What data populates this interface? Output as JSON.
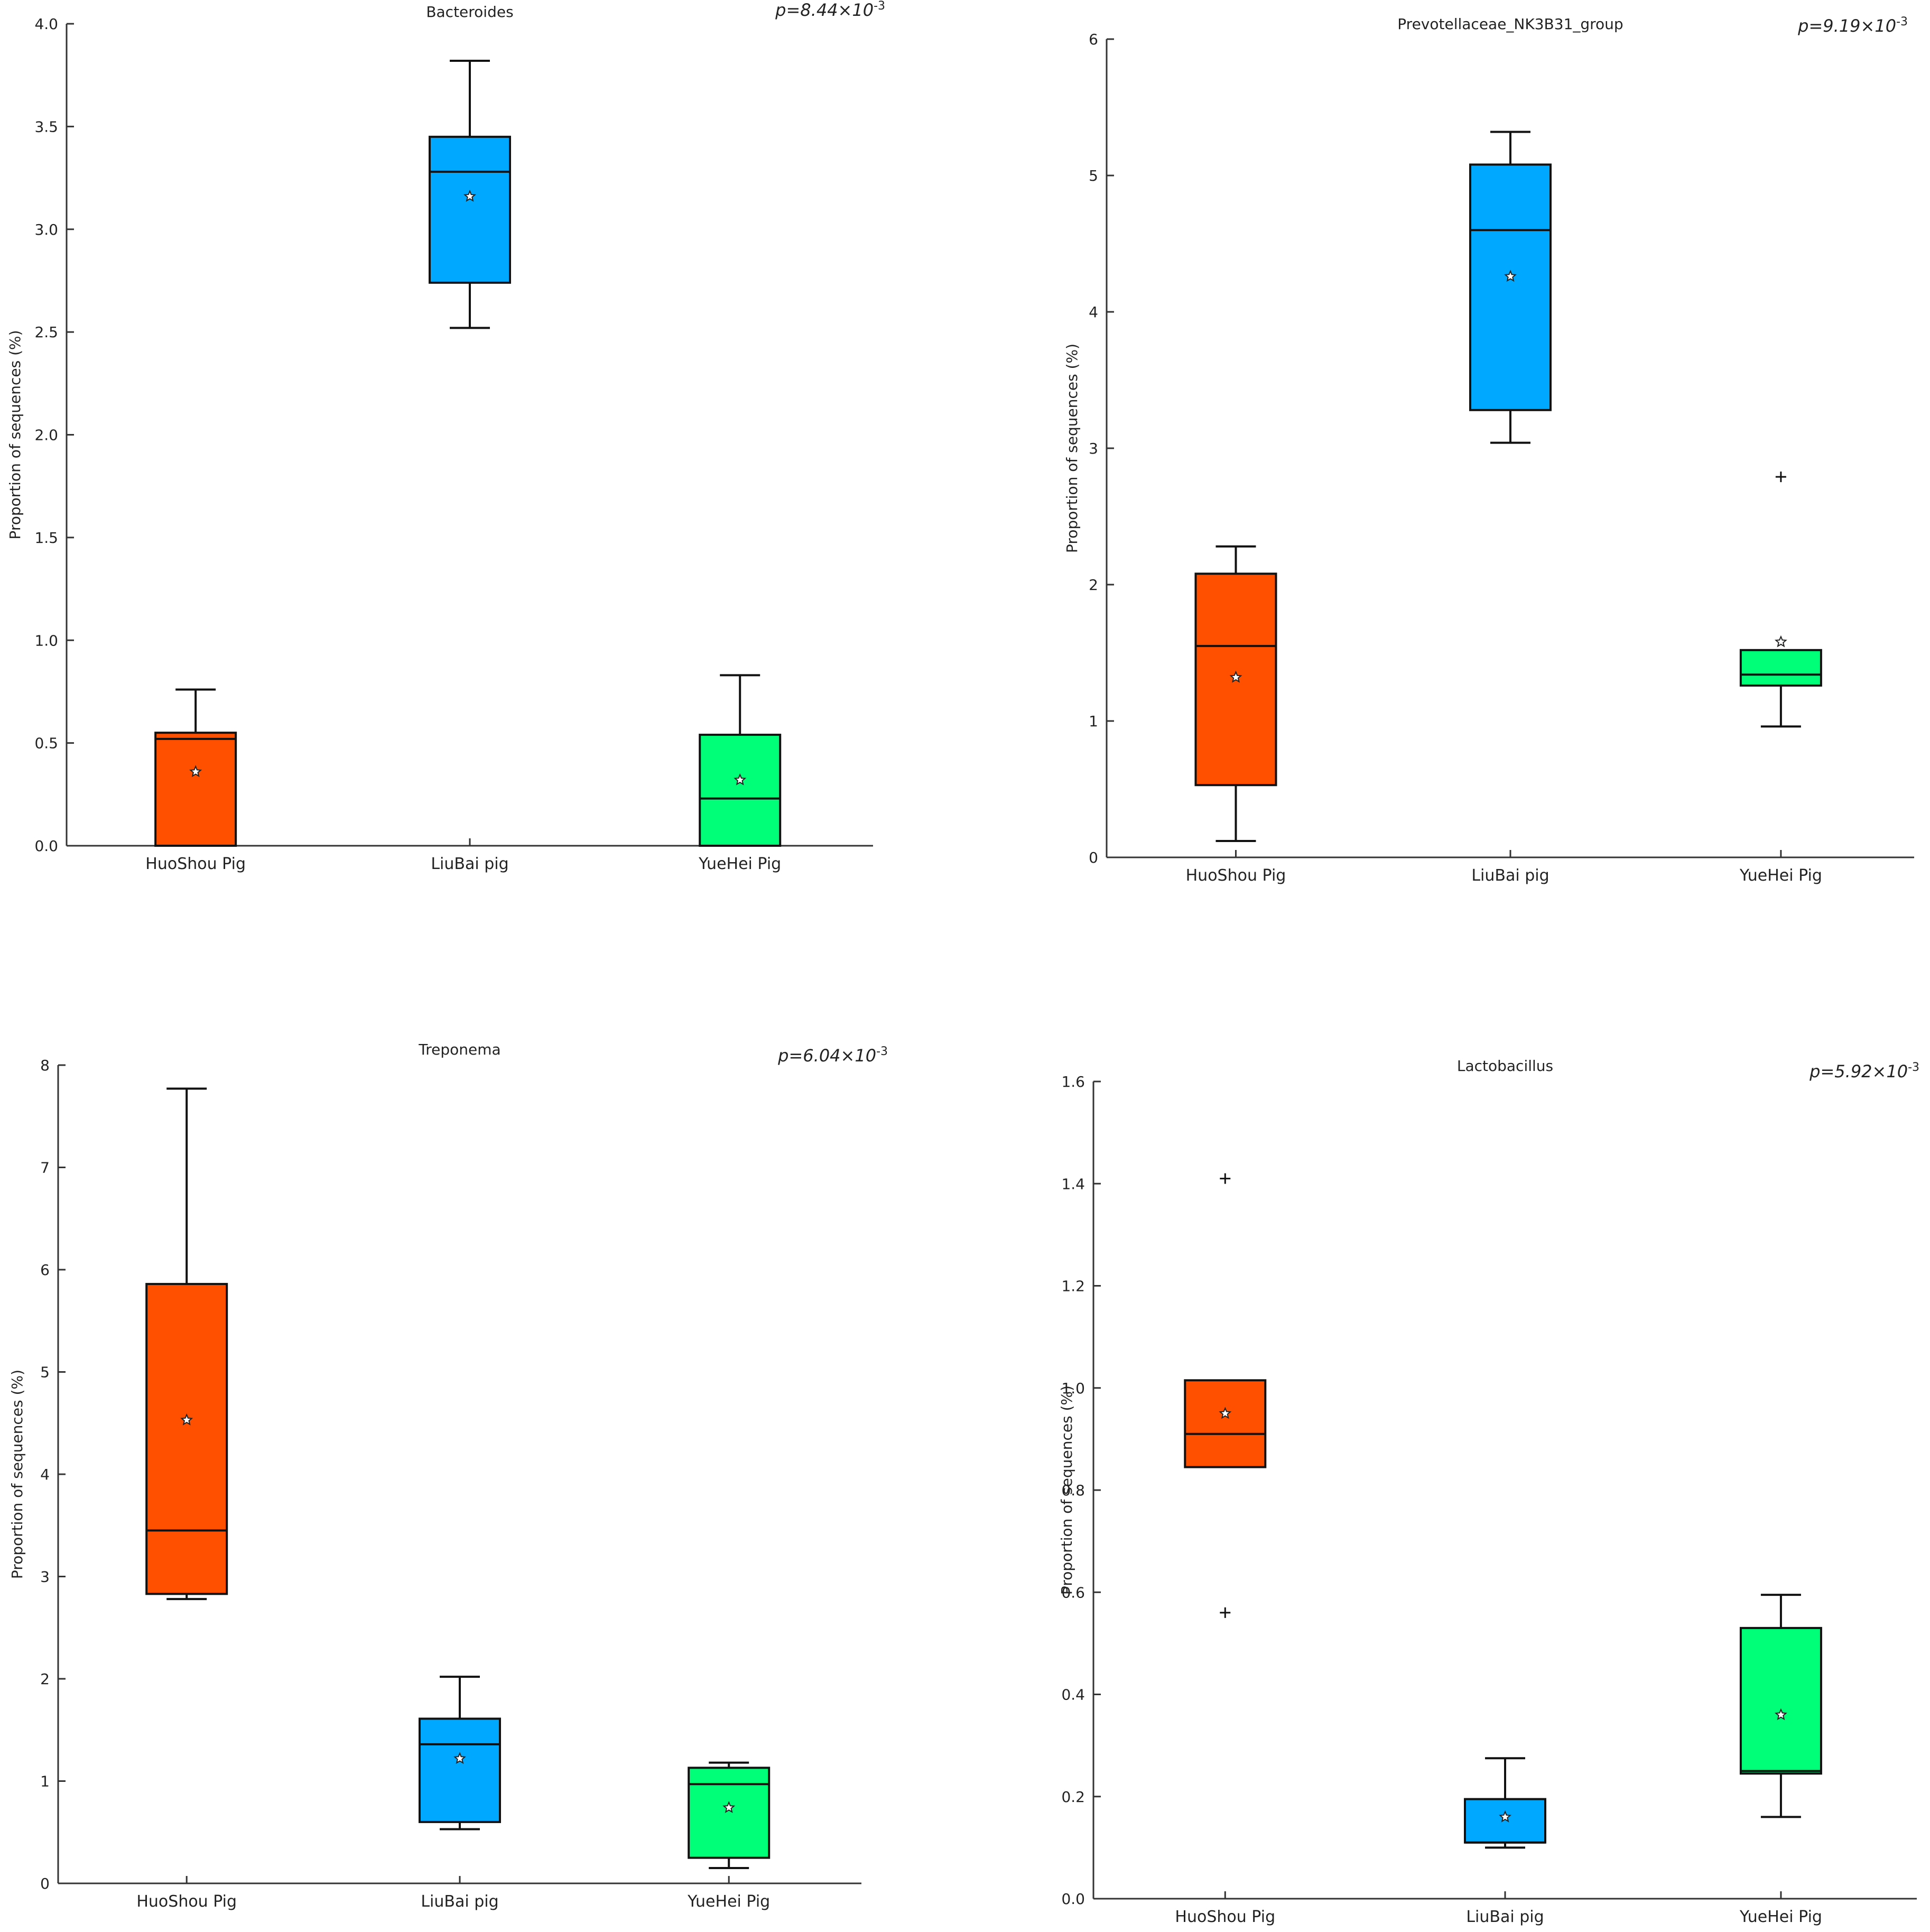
{
  "chart_data": [
    {
      "type": "box",
      "title": "Bacteroides",
      "annotation": {
        "p": "p",
        "eq": "=8.44×10",
        "exp": "-3"
      },
      "ylabel": "Proportion of sequences (%)",
      "ylim": [
        0,
        4.0
      ],
      "yticks": [
        "0.0",
        "0.5",
        "1.0",
        "1.5",
        "2.0",
        "2.5",
        "3.0",
        "3.5",
        "4.0"
      ],
      "categories": [
        "HuoShou Pig",
        "LiuBai pig",
        "YueHei Pig"
      ],
      "boxes": [
        {
          "min": 0.0,
          "q1": 0.0,
          "median": 0.52,
          "q3": 0.55,
          "max": 0.76,
          "mean": 0.36,
          "outliers": [],
          "color": "#FF5000"
        },
        {
          "min": 2.52,
          "q1": 2.74,
          "median": 3.28,
          "q3": 3.45,
          "max": 3.82,
          "mean": 3.16,
          "outliers": [],
          "color": "#00A8FF"
        },
        {
          "min": 0.0,
          "q1": 0.0,
          "median": 0.23,
          "q3": 0.54,
          "max": 0.83,
          "mean": 0.32,
          "outliers": [],
          "color": "#00FF78"
        }
      ]
    },
    {
      "type": "box",
      "title": "Prevotellaceae_NK3B31_group",
      "annotation": {
        "p": "p",
        "eq": "=9.19×10",
        "exp": "-3"
      },
      "ylabel": "Proportion of sequences (%)",
      "ylim": [
        0,
        6
      ],
      "yticks": [
        "0",
        "1",
        "2",
        "3",
        "4",
        "5",
        "6"
      ],
      "categories": [
        "HuoShou Pig",
        "LiuBai pig",
        "YueHei Pig"
      ],
      "boxes": [
        {
          "min": 0.12,
          "q1": 0.53,
          "median": 1.55,
          "q3": 2.08,
          "max": 2.28,
          "mean": 1.32,
          "outliers": [],
          "color": "#FF5000"
        },
        {
          "min": 3.04,
          "q1": 3.28,
          "median": 4.6,
          "q3": 5.08,
          "max": 5.32,
          "mean": 4.26,
          "outliers": [],
          "color": "#00A8FF"
        },
        {
          "min": 0.96,
          "q1": 1.26,
          "median": 1.34,
          "q3": 1.52,
          "max": 1.52,
          "mean": 1.58,
          "outliers": [
            2.79
          ],
          "color": "#00FF78"
        }
      ]
    },
    {
      "type": "box",
      "title": "Treponema",
      "annotation": {
        "p": "p",
        "eq": "=6.04×10",
        "exp": "-3"
      },
      "ylabel": "Proportion of sequences (%)",
      "ylim": [
        0,
        8
      ],
      "yticks": [
        "0",
        "1",
        "2",
        "3",
        "4",
        "5",
        "6",
        "7",
        "8"
      ],
      "categories": [
        "HuoShou Pig",
        "LiuBai pig",
        "YueHei Pig"
      ],
      "boxes": [
        {
          "min": 2.78,
          "q1": 2.83,
          "median": 3.45,
          "q3": 5.86,
          "max": 7.77,
          "mean": 4.53,
          "outliers": [],
          "color": "#FF5000"
        },
        {
          "min": 0.53,
          "q1": 0.6,
          "median": 1.36,
          "q3": 1.61,
          "max": 2.02,
          "mean": 1.22,
          "outliers": [],
          "color": "#00A8FF"
        },
        {
          "min": 0.15,
          "q1": 0.25,
          "median": 0.97,
          "q3": 1.13,
          "max": 1.18,
          "mean": 0.74,
          "outliers": [],
          "color": "#00FF78"
        }
      ]
    },
    {
      "type": "box",
      "title": "Lactobacillus",
      "annotation": {
        "p": "p",
        "eq": "=5.92×10",
        "exp": "-3"
      },
      "ylabel": "Proportion of sequences (%)",
      "ylim": [
        0,
        1.6
      ],
      "yticks": [
        "0.0",
        "0.2",
        "0.4",
        "0.6",
        "0.8",
        "1.0",
        "1.2",
        "1.4",
        "1.6"
      ],
      "categories": [
        "HuoShou Pig",
        "LiuBai pig",
        "YueHei Pig"
      ],
      "boxes": [
        {
          "min": 0.845,
          "q1": 0.845,
          "median": 0.91,
          "q3": 1.015,
          "max": 1.015,
          "mean": 0.95,
          "outliers": [
            1.41,
            0.56
          ],
          "color": "#FF5000"
        },
        {
          "min": 0.1,
          "q1": 0.11,
          "median": 0.11,
          "q3": 0.195,
          "max": 0.275,
          "mean": 0.16,
          "outliers": [],
          "color": "#00A8FF"
        },
        {
          "min": 0.16,
          "q1": 0.245,
          "median": 0.25,
          "q3": 0.53,
          "max": 0.595,
          "mean": 0.36,
          "outliers": [],
          "color": "#00FF78"
        }
      ]
    }
  ]
}
